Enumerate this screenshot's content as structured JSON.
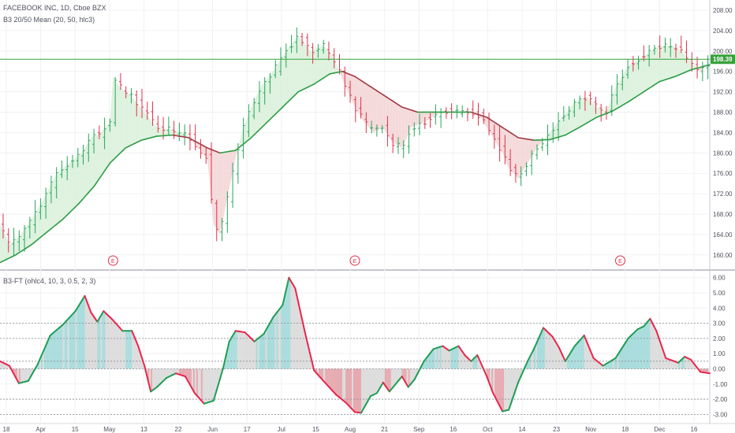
{
  "header": {
    "title": "FACEBOOK INC, 1D, Cboe BZX",
    "indicator_main": "B3 20/50 Mean (20, 50, hlc3)",
    "indicator_lower": "B3-FT (ohlc4, 10, 3, 0.5, 2, 3)"
  },
  "colors": {
    "up_bar": "#26a65b",
    "down_bar": "#e0314b",
    "mean_up": "#2e9d46",
    "mean_down": "#a33a45",
    "fill_up": "#d8f0d9",
    "fill_down": "#f3d3d5",
    "ft_up": "#1f9d55",
    "ft_down": "#e8264d",
    "hist_up": "#9fd8d8",
    "hist_down": "#e3a0a6",
    "hist_neutral": "#d8d8d8",
    "price_line": "#38a13c",
    "earnings": "#e0314b"
  },
  "chart_data": [
    {
      "type": "ohlc",
      "title": "FACEBOOK INC, 1D, Cboe BZX",
      "yaxis_ticks": [
        "208.00",
        "204.00",
        "200.00",
        "196.00",
        "192.00",
        "188.00",
        "184.00",
        "180.00",
        "176.00",
        "172.00",
        "168.00",
        "164.00",
        "160.00"
      ],
      "ylim": [
        157.5,
        210
      ],
      "last_price_label": "198.39",
      "last_price": 198.39,
      "earnings_markers": [
        {
          "date": "Apr 24",
          "label": "E"
        },
        {
          "date": "Jul 24",
          "label": "E"
        },
        {
          "date": "Oct 30",
          "label": "E"
        }
      ],
      "close_trajectory": [
        [
          0,
          166
        ],
        [
          6,
          162
        ],
        [
          12,
          163.5
        ],
        [
          20,
          167
        ],
        [
          28,
          171
        ],
        [
          36,
          176
        ],
        [
          44,
          178
        ],
        [
          52,
          180
        ],
        [
          58,
          183
        ],
        [
          64,
          184
        ],
        [
          70,
          186
        ],
        [
          72,
          195
        ],
        [
          76,
          193
        ],
        [
          84,
          191
        ],
        [
          92,
          188
        ],
        [
          100,
          185
        ],
        [
          110,
          184.5
        ],
        [
          118,
          184
        ],
        [
          126,
          181
        ],
        [
          132,
          179
        ],
        [
          136,
          166
        ],
        [
          140,
          164
        ],
        [
          146,
          173
        ],
        [
          150,
          179
        ],
        [
          154,
          184
        ],
        [
          160,
          189
        ],
        [
          166,
          193
        ],
        [
          174,
          196
        ],
        [
          182,
          200
        ],
        [
          190,
          203
        ],
        [
          198,
          200
        ],
        [
          206,
          201
        ],
        [
          212,
          199
        ],
        [
          216,
          196
        ],
        [
          220,
          193
        ],
        [
          226,
          189
        ],
        [
          232,
          186
        ],
        [
          238,
          184
        ],
        [
          244,
          185
        ],
        [
          250,
          182
        ],
        [
          256,
          181
        ],
        [
          262,
          185
        ],
        [
          270,
          186
        ],
        [
          280,
          188
        ],
        [
          290,
          188
        ],
        [
          300,
          188
        ],
        [
          306,
          187
        ],
        [
          310,
          185
        ],
        [
          314,
          183
        ],
        [
          320,
          180
        ],
        [
          324,
          177
        ],
        [
          330,
          175
        ],
        [
          336,
          178
        ],
        [
          342,
          181
        ],
        [
          350,
          184
        ],
        [
          358,
          187
        ],
        [
          366,
          190
        ],
        [
          374,
          191
        ],
        [
          380,
          189
        ],
        [
          386,
          188
        ],
        [
          392,
          193
        ],
        [
          400,
          197
        ],
        [
          410,
          199
        ],
        [
          420,
          201
        ],
        [
          428,
          201
        ],
        [
          434,
          200
        ],
        [
          440,
          198
        ],
        [
          446,
          196
        ],
        [
          452,
          198
        ]
      ],
      "mean_trajectory": [
        [
          0,
          158.5
        ],
        [
          10,
          160
        ],
        [
          20,
          162
        ],
        [
          30,
          164.5
        ],
        [
          40,
          167
        ],
        [
          50,
          170
        ],
        [
          60,
          173.5
        ],
        [
          70,
          178
        ],
        [
          80,
          181
        ],
        [
          90,
          182.5
        ],
        [
          100,
          183.3
        ],
        [
          110,
          183.5
        ],
        [
          120,
          183
        ],
        [
          126,
          182
        ],
        [
          132,
          181
        ],
        [
          140,
          180
        ],
        [
          150,
          180.5
        ],
        [
          160,
          183
        ],
        [
          170,
          186
        ],
        [
          180,
          189
        ],
        [
          190,
          192
        ],
        [
          200,
          193.5
        ],
        [
          210,
          195.5
        ],
        [
          218,
          196
        ],
        [
          226,
          195
        ],
        [
          236,
          193
        ],
        [
          246,
          191
        ],
        [
          256,
          189
        ],
        [
          266,
          188
        ],
        [
          280,
          188
        ],
        [
          290,
          188
        ],
        [
          300,
          188
        ],
        [
          310,
          187
        ],
        [
          320,
          185
        ],
        [
          330,
          183
        ],
        [
          340,
          182.5
        ],
        [
          350,
          182.6
        ],
        [
          360,
          183.5
        ],
        [
          370,
          185.2
        ],
        [
          380,
          187
        ],
        [
          390,
          188.2
        ],
        [
          400,
          190
        ],
        [
          410,
          192
        ],
        [
          420,
          194
        ],
        [
          430,
          195
        ],
        [
          440,
          196.3
        ],
        [
          452,
          197.3
        ]
      ]
    },
    {
      "type": "line",
      "title": "B3-FT (ohlc4, 10, 3, 0.5, 2, 3)",
      "yaxis_ticks": [
        "6.00",
        "5.00",
        "4.00",
        "3.00",
        "2.00",
        "1.00",
        "0.00",
        "-1.00",
        "-2.00",
        "-3.00"
      ],
      "ylim": [
        -3.5,
        6.4
      ],
      "reference_lines": [
        3,
        2,
        0.5,
        0,
        -2,
        -3
      ],
      "x_labels": [
        "18",
        "Apr",
        "15",
        "May",
        "13",
        "22",
        "Jun",
        "17",
        "Jul",
        "15",
        "Aug",
        "21",
        "Sep",
        "16",
        "Oct",
        "14",
        "23",
        "Nov",
        "18",
        "Dec",
        "16"
      ],
      "series": [
        {
          "values": [
            [
              0,
              0.5
            ],
            [
              6,
              0.2
            ],
            [
              12,
              -0.95
            ],
            [
              18,
              -0.8
            ],
            [
              24,
              0.3
            ],
            [
              32,
              2.2
            ],
            [
              40,
              2.9
            ],
            [
              48,
              3.8
            ],
            [
              54,
              4.8
            ],
            [
              58,
              3.7
            ],
            [
              62,
              3.1
            ],
            [
              66,
              3.8
            ],
            [
              72,
              3.2
            ],
            [
              78,
              2.5
            ],
            [
              84,
              2.5
            ],
            [
              88,
              1.5
            ],
            [
              92,
              0.2
            ],
            [
              96,
              -1.5
            ],
            [
              100,
              -1.2
            ],
            [
              106,
              -0.6
            ],
            [
              112,
              -0.3
            ],
            [
              118,
              -0.5
            ],
            [
              124,
              -1.6
            ],
            [
              130,
              -2.3
            ],
            [
              136,
              -2.1
            ],
            [
              142,
              0
            ],
            [
              146,
              1.8
            ],
            [
              150,
              2.5
            ],
            [
              156,
              2.4
            ],
            [
              162,
              1.8
            ],
            [
              168,
              2.3
            ],
            [
              174,
              3.4
            ],
            [
              180,
              4.2
            ],
            [
              184,
              6
            ],
            [
              188,
              5.3
            ],
            [
              194,
              2.5
            ],
            [
              200,
              -0.1
            ],
            [
              206,
              -0.8
            ],
            [
              214,
              -1.7
            ],
            [
              220,
              -2.2
            ],
            [
              226,
              -2.85
            ],
            [
              230,
              -2.9
            ],
            [
              236,
              -1.8
            ],
            [
              240,
              -1.6
            ],
            [
              244,
              -0.9
            ],
            [
              248,
              -1.5
            ],
            [
              252,
              -1
            ],
            [
              256,
              -0.5
            ],
            [
              260,
              -1.2
            ],
            [
              264,
              -0.7
            ],
            [
              270,
              0.5
            ],
            [
              276,
              1.3
            ],
            [
              282,
              1.5
            ],
            [
              286,
              1.2
            ],
            [
              292,
              1.5
            ],
            [
              296,
              0.9
            ],
            [
              300,
              0.5
            ],
            [
              304,
              0.9
            ],
            [
              310,
              -0.5
            ],
            [
              314,
              -1.6
            ],
            [
              320,
              -2.8
            ],
            [
              324,
              -2.7
            ],
            [
              330,
              -0.9
            ],
            [
              336,
              0.5
            ],
            [
              340,
              1.3
            ],
            [
              346,
              2.7
            ],
            [
              352,
              2.1
            ],
            [
              356,
              1.4
            ],
            [
              360,
              0.5
            ],
            [
              366,
              1.5
            ],
            [
              372,
              2.2
            ],
            [
              378,
              0.7
            ],
            [
              384,
              0.2
            ],
            [
              392,
              0.7
            ],
            [
              400,
              2
            ],
            [
              406,
              2.6
            ],
            [
              410,
              2.8
            ],
            [
              414,
              3.3
            ],
            [
              418,
              2.5
            ],
            [
              424,
              0.7
            ],
            [
              432,
              0.4
            ],
            [
              436,
              0.8
            ],
            [
              440,
              0.6
            ],
            [
              446,
              -0.2
            ],
            [
              452,
              -0.3
            ]
          ]
        }
      ]
    }
  ]
}
